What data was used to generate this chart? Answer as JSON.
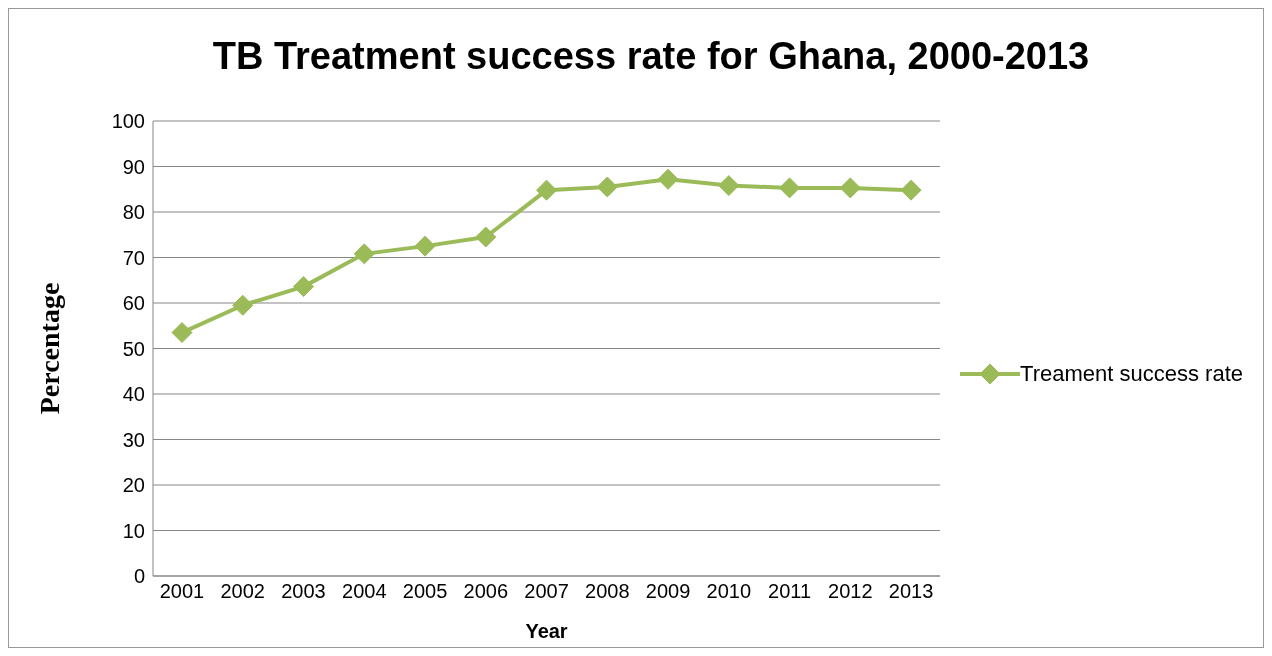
{
  "chart_data": {
    "type": "line",
    "title": "TB Treatment success rate for Ghana, 2000-2013",
    "xlabel": "Year",
    "ylabel": "Percentage",
    "categories": [
      "2001",
      "2002",
      "2003",
      "2004",
      "2005",
      "2006",
      "2007",
      "2008",
      "2009",
      "2010",
      "2011",
      "2012",
      "2013"
    ],
    "series": [
      {
        "name": "Treament success rate",
        "color": "#9bbb59",
        "values": [
          53.5,
          59.5,
          63.6,
          70.8,
          72.5,
          74.5,
          84.8,
          85.5,
          87.2,
          85.8,
          85.3,
          85.3,
          84.8
        ]
      }
    ],
    "ylim": [
      0,
      100
    ],
    "yticks": [
      0,
      10,
      20,
      30,
      40,
      50,
      60,
      70,
      80,
      90,
      100
    ],
    "grid": "y",
    "legend": "right",
    "marker": "diamond",
    "line_style": "solid"
  }
}
